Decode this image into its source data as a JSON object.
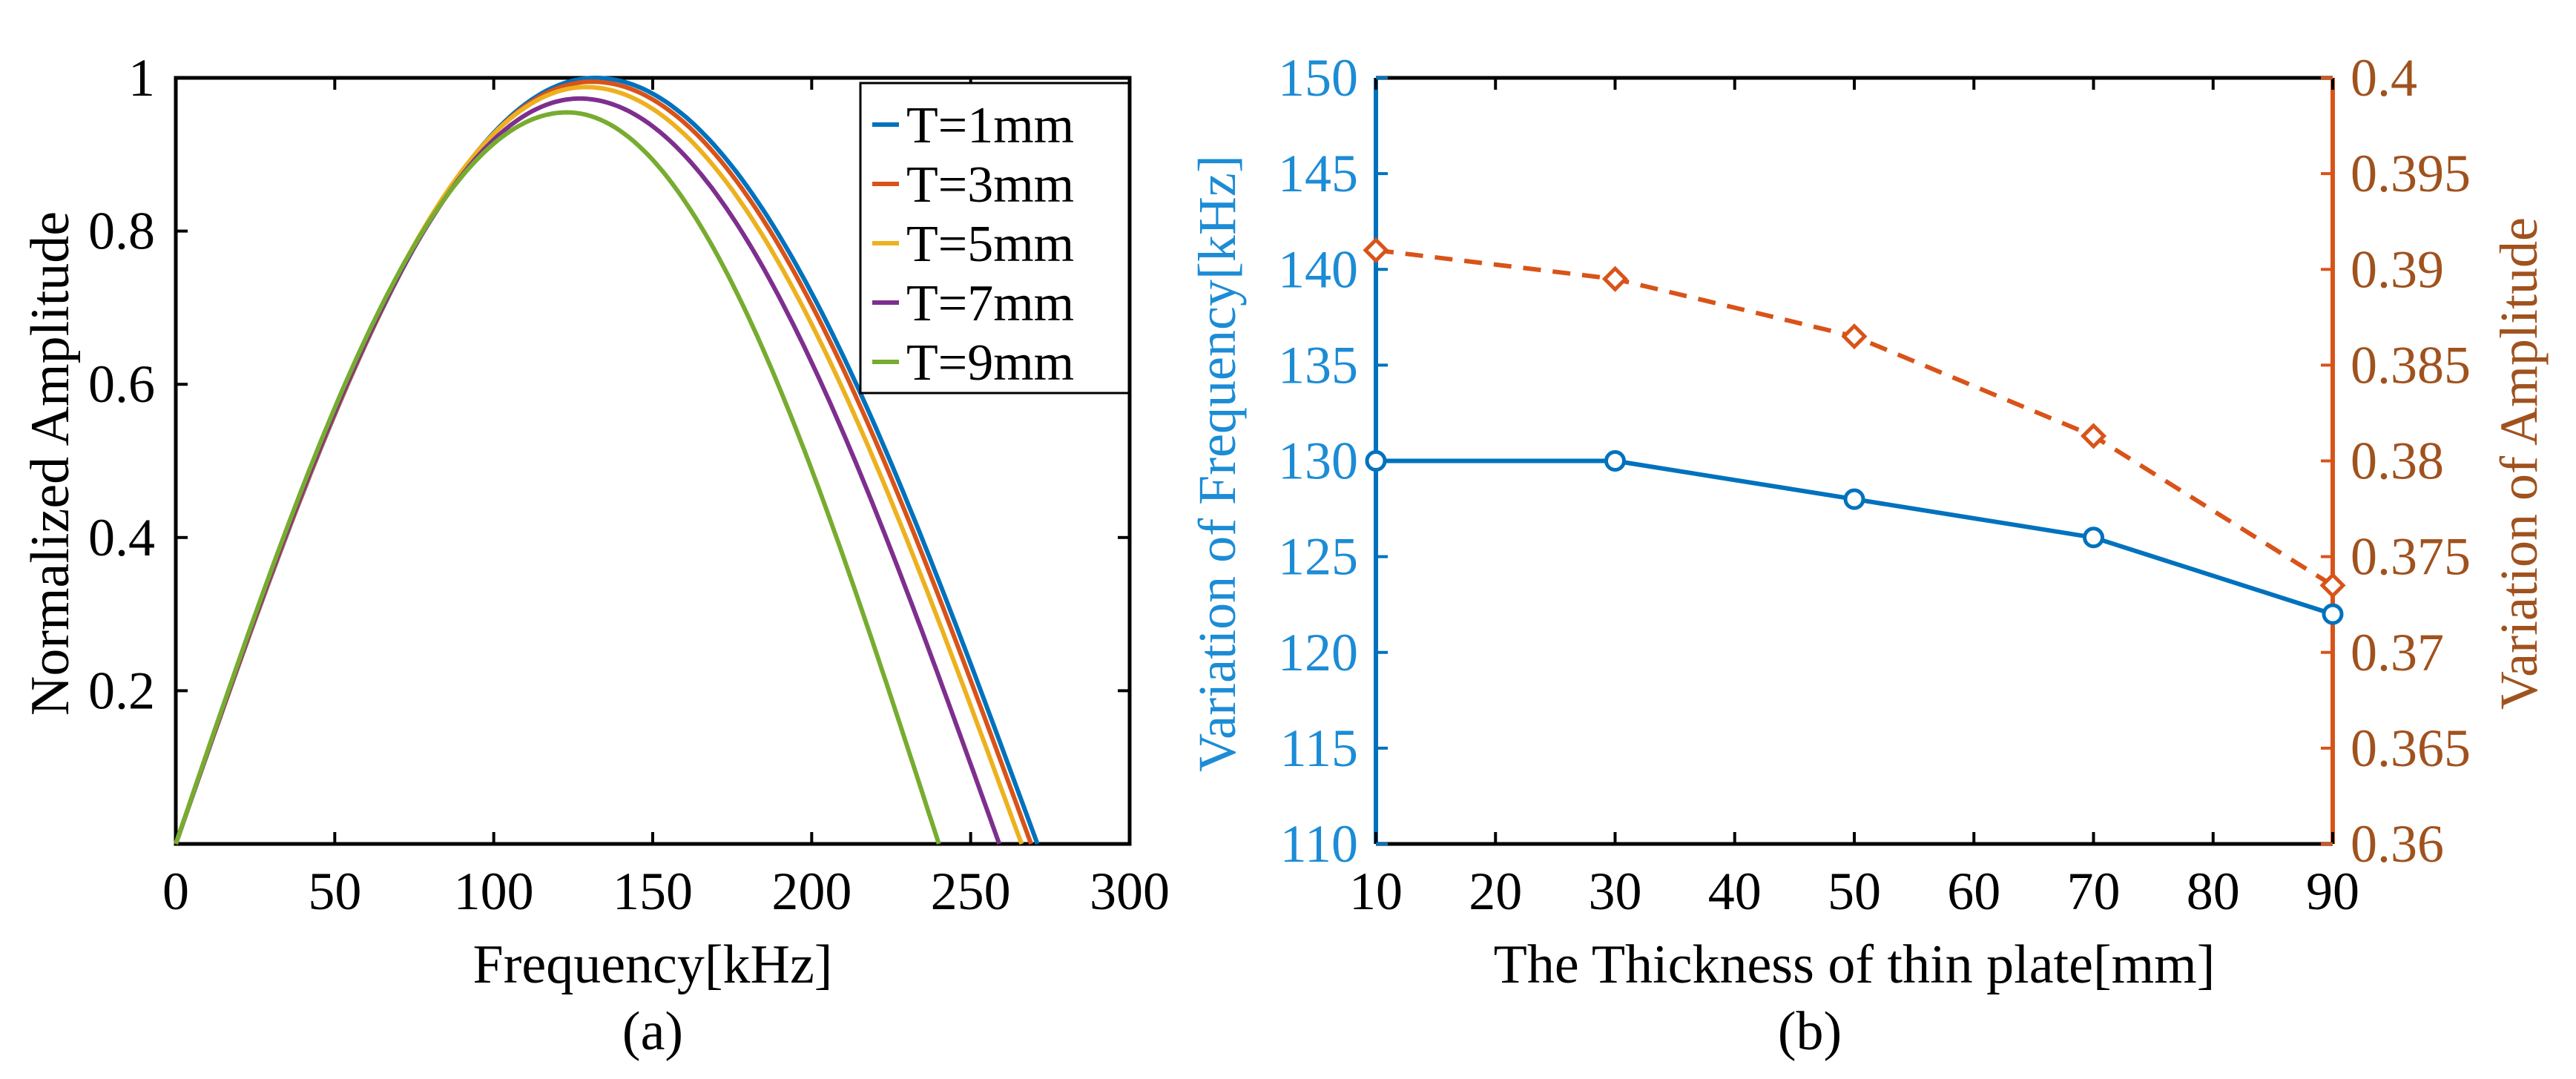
{
  "colors": {
    "axis": "#000000",
    "blue": "#0072BD",
    "orange": "#D95319",
    "yellow": "#EDB120",
    "purple": "#7E2F8E",
    "green": "#77AC30",
    "right_axis": "#A0521E"
  },
  "chart_data": [
    {
      "type": "line",
      "panel_label": "(a)",
      "xlabel": "Frequency[kHz]",
      "ylabel": "Normalized Amplitude",
      "xlim": [
        0,
        300
      ],
      "ylim": [
        0,
        1
      ],
      "xticks": [
        0,
        50,
        100,
        150,
        200,
        250,
        300
      ],
      "xtick_labels": [
        "0",
        "50",
        "100",
        "150",
        "200",
        "250",
        "300"
      ],
      "yticks": [
        0.2,
        0.4,
        0.6,
        0.8,
        1
      ],
      "ytick_labels": [
        "0.2",
        "0.4",
        "0.6",
        "0.8",
        "1"
      ],
      "legend_position": "top-right",
      "grid": false,
      "series": [
        {
          "name": "T=1mm",
          "color_key": "blue",
          "peak_x": 132,
          "peak_y": 1.0,
          "end_x": 271
        },
        {
          "name": "T=3mm",
          "color_key": "orange",
          "peak_x": 131,
          "peak_y": 0.995,
          "end_x": 269
        },
        {
          "name": "T=5mm",
          "color_key": "yellow",
          "peak_x": 129,
          "peak_y": 0.988,
          "end_x": 266
        },
        {
          "name": "T=7mm",
          "color_key": "purple",
          "peak_x": 127,
          "peak_y": 0.973,
          "end_x": 259
        },
        {
          "name": "T=9mm",
          "color_key": "green",
          "peak_x": 123,
          "peak_y": 0.955,
          "end_x": 240
        }
      ]
    },
    {
      "type": "line",
      "panel_label": "(b)",
      "xlabel": "The Thickness of thin plate[mm]",
      "ylabel_left": "Variation of Frequency[kHz]",
      "ylabel_right": "Variation of Amplitude",
      "xlim": [
        10,
        90
      ],
      "ylim_left": [
        110,
        150
      ],
      "ylim_right": [
        0.36,
        0.4
      ],
      "xticks": [
        10,
        20,
        30,
        40,
        50,
        60,
        70,
        80,
        90
      ],
      "xtick_labels": [
        "10",
        "20",
        "30",
        "40",
        "50",
        "60",
        "70",
        "80",
        "90"
      ],
      "yticks_left": [
        110,
        115,
        120,
        125,
        130,
        135,
        140,
        145,
        150
      ],
      "ytick_labels_left": [
        "110",
        "115",
        "120",
        "125",
        "130",
        "135",
        "140",
        "145",
        "150"
      ],
      "yticks_right": [
        0.36,
        0.365,
        0.37,
        0.375,
        0.38,
        0.385,
        0.39,
        0.395,
        0.4
      ],
      "ytick_labels_right": [
        "0.36",
        "0.365",
        "0.37",
        "0.375",
        "0.38",
        "0.385",
        "0.39",
        "0.395",
        "0.4"
      ],
      "grid": false,
      "series": [
        {
          "name": "Frequency",
          "axis": "left",
          "color_key": "blue",
          "line": "solid",
          "marker": "circle",
          "x": [
            10,
            30,
            50,
            70,
            90
          ],
          "y": [
            130,
            130,
            128,
            126,
            122
          ]
        },
        {
          "name": "Amplitude",
          "axis": "right",
          "color_key": "orange",
          "line": "dashed",
          "marker": "diamond",
          "x": [
            10,
            30,
            50,
            70,
            90
          ],
          "y": [
            0.391,
            0.3895,
            0.3865,
            0.3813,
            0.3735
          ]
        }
      ]
    }
  ]
}
